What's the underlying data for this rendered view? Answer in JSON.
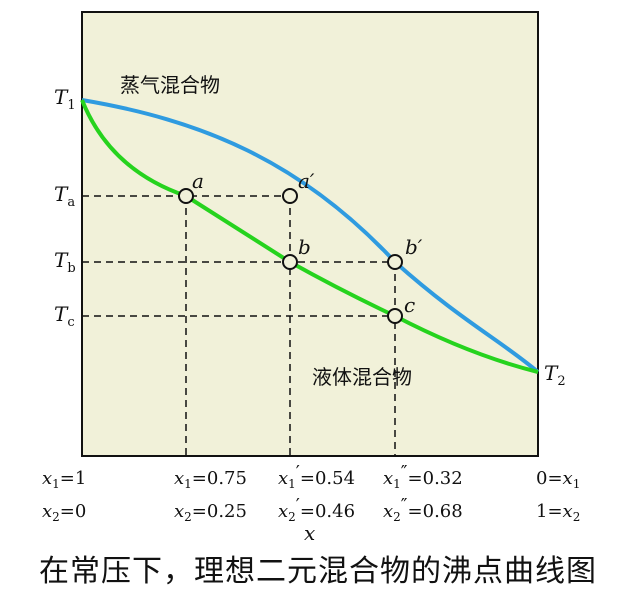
{
  "colors": {
    "background": "#F1F1D9",
    "vapor_curve": "#2F9BE0",
    "liquid_curve": "#26D31E",
    "guide_lines": "#111111"
  },
  "curves": {
    "vapor_label": "蒸气混合物",
    "liquid_label": "液体混合物"
  },
  "y_axis_labels": {
    "t1": {
      "main": "T",
      "sub": "1"
    },
    "ta": {
      "main": "T",
      "sub": "a"
    },
    "tb": {
      "main": "T",
      "sub": "b"
    },
    "tc": {
      "main": "T",
      "sub": "c"
    },
    "t2": {
      "main": "T",
      "sub": "2"
    }
  },
  "points": {
    "a": "a",
    "a_prime": "a′",
    "b": "b",
    "b_prime": "b′",
    "c": "c"
  },
  "x_labels": {
    "left_top": {
      "v": "x",
      "s": "1",
      "rest": "=1"
    },
    "left_bottom": {
      "v": "x",
      "s": "2",
      "rest": "=0"
    },
    "a_top": {
      "v": "x",
      "s": "1",
      "rest": "=0.75"
    },
    "a_bottom": {
      "v": "x",
      "s": "2",
      "rest": "=0.25"
    },
    "b_top": {
      "v": "x",
      "s": "1",
      "mark": "′",
      "rest": "=0.54"
    },
    "b_bottom": {
      "v": "x",
      "s": "2",
      "mark": "′",
      "rest": "=0.46"
    },
    "c_top": {
      "v": "x",
      "s": "1",
      "mark": "″",
      "rest": "=0.32"
    },
    "c_bottom": {
      "v": "x",
      "s": "2",
      "mark": "″",
      "rest": "=0.68"
    },
    "right_top": {
      "lead": "0=",
      "v": "x",
      "s": "1"
    },
    "right_bottom": {
      "lead": "1=",
      "v": "x",
      "s": "2"
    }
  },
  "x_axis_title": "x",
  "caption": "在常压下，理想二元混合物的沸点曲线图"
}
